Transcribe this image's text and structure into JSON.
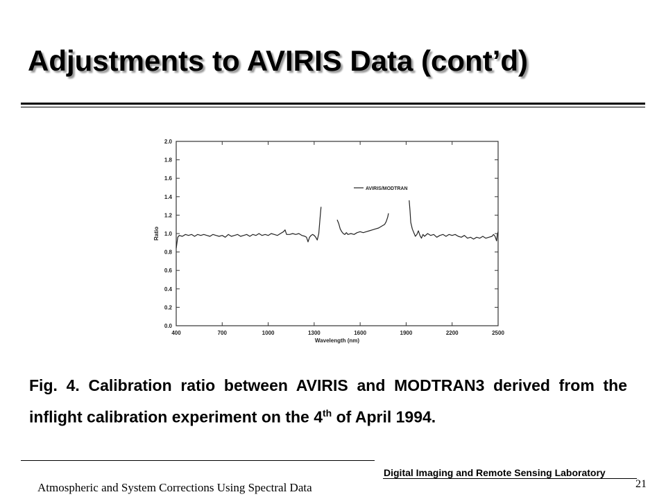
{
  "slide": {
    "title": "Adjustments to AVIRIS Data (cont’d)",
    "caption_prefix": "Fig. 4. Calibration ratio between AVIRIS and MODTRAN3 derived from the inflight calibration experiment on the 4",
    "caption_sup": "th",
    "caption_suffix": " of April 1994.",
    "lab_name": "Digital Imaging and Remote Sensing Laboratory",
    "page_number": "21",
    "footer_title": "Atmospheric and System Corrections Using Spectral Data"
  },
  "chart_data": {
    "type": "line",
    "title": "",
    "xlabel": "Wavelength (nm)",
    "ylabel": "Ratio",
    "xlim": [
      400,
      2500
    ],
    "ylim": [
      0.0,
      2.0
    ],
    "xticks": [
      400,
      700,
      1000,
      1300,
      1600,
      1900,
      2200,
      2500
    ],
    "yticks": [
      0.0,
      0.2,
      0.4,
      0.6,
      0.8,
      1.0,
      1.2,
      1.4,
      1.6,
      1.8,
      2.0
    ],
    "x_tick_labels": [
      "400",
      "700",
      "1000",
      "1300",
      "1600",
      "1900",
      "2200",
      "2500"
    ],
    "y_tick_labels": [
      "0.0",
      "0.2",
      "0.4",
      "0.6",
      "0.8",
      "1.0",
      "1.2",
      "1.4",
      "1.6",
      "1.8",
      "2.0"
    ],
    "legend": {
      "entries": [
        "AVIRIS/MODTRAN"
      ],
      "position": "upper-right"
    },
    "grid": false,
    "series": [
      {
        "name": "AVIRIS/MODTRAN",
        "segments": [
          [
            [
              400,
              0.84
            ],
            [
              405,
              0.9
            ],
            [
              410,
              0.96
            ],
            [
              420,
              0.98
            ],
            [
              440,
              0.97
            ],
            [
              460,
              0.99
            ],
            [
              480,
              0.98
            ],
            [
              500,
              0.99
            ],
            [
              520,
              0.97
            ],
            [
              540,
              0.99
            ],
            [
              560,
              0.98
            ],
            [
              580,
              0.99
            ],
            [
              600,
              0.98
            ],
            [
              620,
              0.97
            ],
            [
              640,
              0.99
            ],
            [
              660,
              0.98
            ],
            [
              680,
              0.97
            ],
            [
              700,
              0.98
            ],
            [
              720,
              0.96
            ],
            [
              740,
              0.99
            ],
            [
              760,
              0.97
            ],
            [
              780,
              0.98
            ],
            [
              800,
              0.99
            ],
            [
              820,
              0.97
            ],
            [
              840,
              0.98
            ],
            [
              860,
              0.99
            ],
            [
              880,
              0.97
            ],
            [
              900,
              0.99
            ],
            [
              920,
              0.98
            ],
            [
              940,
              1.0
            ],
            [
              960,
              0.98
            ],
            [
              980,
              0.99
            ],
            [
              1000,
              0.98
            ],
            [
              1020,
              1.0
            ],
            [
              1040,
              0.99
            ],
            [
              1060,
              0.98
            ],
            [
              1080,
              1.0
            ],
            [
              1100,
              1.02
            ],
            [
              1110,
              1.04
            ],
            [
              1120,
              0.99
            ],
            [
              1140,
              0.99
            ],
            [
              1160,
              1.0
            ],
            [
              1180,
              0.99
            ],
            [
              1200,
              1.0
            ],
            [
              1220,
              0.98
            ],
            [
              1240,
              0.97
            ],
            [
              1250,
              0.96
            ],
            [
              1260,
              0.91
            ],
            [
              1270,
              0.96
            ],
            [
              1280,
              0.98
            ],
            [
              1290,
              0.99
            ],
            [
              1300,
              0.98
            ],
            [
              1310,
              0.96
            ],
            [
              1320,
              0.93
            ],
            [
              1330,
              1.0
            ],
            [
              1335,
              1.1
            ],
            [
              1340,
              1.2
            ],
            [
              1345,
              1.29
            ]
          ],
          [
            [
              1450,
              1.15
            ],
            [
              1460,
              1.11
            ],
            [
              1470,
              1.05
            ],
            [
              1480,
              1.02
            ],
            [
              1490,
              1.0
            ],
            [
              1500,
              0.99
            ],
            [
              1510,
              1.01
            ],
            [
              1520,
              0.99
            ],
            [
              1540,
              1.0
            ],
            [
              1560,
              0.99
            ],
            [
              1580,
              1.01
            ],
            [
              1600,
              1.02
            ],
            [
              1620,
              1.01
            ],
            [
              1640,
              1.02
            ],
            [
              1660,
              1.03
            ],
            [
              1680,
              1.04
            ],
            [
              1700,
              1.05
            ],
            [
              1720,
              1.06
            ],
            [
              1740,
              1.08
            ],
            [
              1760,
              1.1
            ],
            [
              1770,
              1.13
            ],
            [
              1780,
              1.18
            ],
            [
              1785,
              1.22
            ]
          ],
          [
            [
              1920,
              1.36
            ],
            [
              1925,
              1.25
            ],
            [
              1930,
              1.12
            ],
            [
              1940,
              1.05
            ],
            [
              1950,
              1.01
            ],
            [
              1960,
              0.97
            ],
            [
              1970,
              0.99
            ],
            [
              1980,
              1.03
            ],
            [
              1990,
              0.98
            ],
            [
              2000,
              0.95
            ],
            [
              2010,
              0.99
            ],
            [
              2020,
              0.97
            ],
            [
              2040,
              1.0
            ],
            [
              2060,
              0.98
            ],
            [
              2080,
              0.99
            ],
            [
              2100,
              0.96
            ],
            [
              2120,
              0.98
            ],
            [
              2140,
              0.99
            ],
            [
              2160,
              0.97
            ],
            [
              2180,
              0.99
            ],
            [
              2200,
              0.98
            ],
            [
              2220,
              0.99
            ],
            [
              2240,
              0.97
            ],
            [
              2260,
              0.96
            ],
            [
              2280,
              0.98
            ],
            [
              2300,
              0.95
            ],
            [
              2320,
              0.96
            ],
            [
              2340,
              0.94
            ],
            [
              2360,
              0.96
            ],
            [
              2380,
              0.95
            ],
            [
              2400,
              0.97
            ],
            [
              2420,
              0.95
            ],
            [
              2440,
              0.96
            ],
            [
              2460,
              0.97
            ],
            [
              2470,
              0.99
            ],
            [
              2480,
              0.97
            ],
            [
              2490,
              0.92
            ],
            [
              2495,
              0.99
            ],
            [
              2500,
              1.02
            ]
          ]
        ]
      }
    ]
  }
}
